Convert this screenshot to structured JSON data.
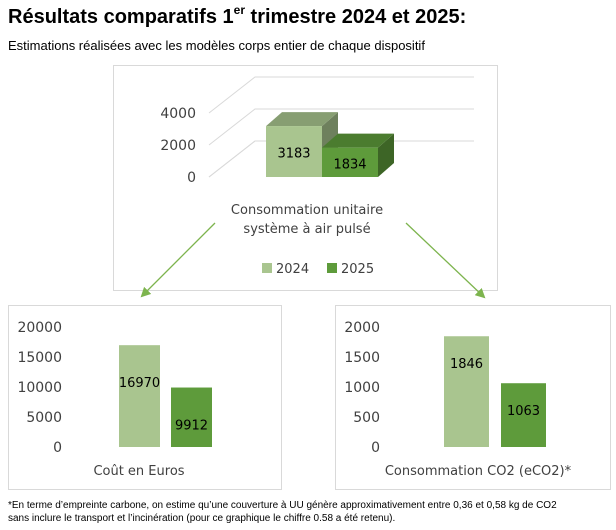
{
  "title": {
    "main": "Résultats comparatifs 1",
    "superscript": "er",
    "rest": " trimestre 2024 et 2025:"
  },
  "subtitle": "Estimations réalisées avec les modèles corps entier de chaque dispositif",
  "colors": {
    "series_2024": "#a9c58f",
    "series_2025": "#5e9b3b",
    "arrow": "#7db44e"
  },
  "chart_data": [
    {
      "type": "bar",
      "style": "3d",
      "categories": [
        "Consommation unitaire système à air pulsé"
      ],
      "category_lines": [
        "Consommation unitaire",
        "système à air pulsé"
      ],
      "series": [
        {
          "name": "2024",
          "values": [
            3183
          ]
        },
        {
          "name": "2025",
          "values": [
            1834
          ]
        }
      ],
      "ylim": [
        0,
        4000
      ],
      "yticks": [
        0,
        2000,
        4000
      ],
      "legend": "bottom"
    },
    {
      "type": "bar",
      "categories": [
        "Coût en Euros"
      ],
      "series": [
        {
          "name": "2024",
          "values": [
            16970
          ]
        },
        {
          "name": "2025",
          "values": [
            9912
          ]
        }
      ],
      "ylim": [
        0,
        20000
      ],
      "yticks": [
        0,
        5000,
        10000,
        15000,
        20000
      ]
    },
    {
      "type": "bar",
      "categories": [
        "Consommation CO2 (eCO2)*"
      ],
      "series": [
        {
          "name": "2024",
          "values": [
            1846
          ]
        },
        {
          "name": "2025",
          "values": [
            1063
          ]
        }
      ],
      "ylim": [
        0,
        2000
      ],
      "yticks": [
        0,
        500,
        1000,
        1500,
        2000
      ]
    }
  ],
  "footnote": {
    "line1": "*En terme d’empreinte carbone, on estime qu’une couverture à UU génère approximativement entre 0,36 et 0,58 kg de CO2",
    "line2": "sans inclure le transport et l’incinération (pour ce graphique le chiffre 0.58 a été retenu)."
  }
}
